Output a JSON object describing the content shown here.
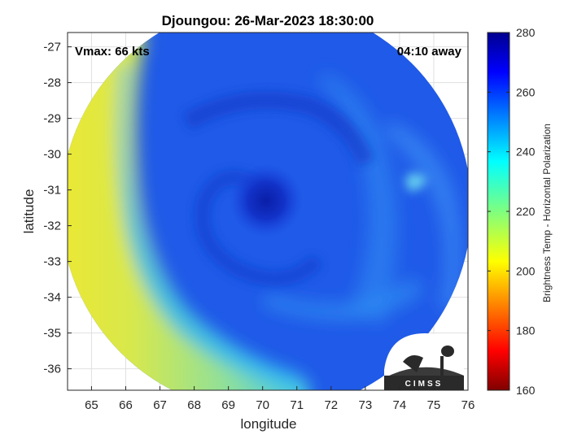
{
  "chart_data": {
    "type": "heatmap",
    "title": "Djoungou: 26-Mar-2023 18:30:00",
    "xlabel": "longitude",
    "ylabel": "latitude",
    "xlim": [
      64.3,
      76
    ],
    "ylim": [
      -36.6,
      -26.6
    ],
    "xticks": [
      "65",
      "66",
      "67",
      "68",
      "69",
      "70",
      "71",
      "72",
      "73",
      "74",
      "75",
      "76"
    ],
    "yticks": [
      "-27",
      "-28",
      "-29",
      "-30",
      "-31",
      "-32",
      "-33",
      "-34",
      "-35",
      "-36"
    ],
    "grid": true,
    "annotations": {
      "left": "Vmax: 66 kts",
      "right": "04:10 away"
    },
    "colorbar": {
      "label": "Brightness Temp - Horizontal Polarization",
      "min": 160,
      "max": 280,
      "ticks": [
        "160",
        "180",
        "200",
        "220",
        "240",
        "260",
        "280"
      ],
      "colormap": "jet"
    },
    "storm_center": {
      "lon": 70.1,
      "lat": -31.3
    },
    "swath_center": {
      "lon": 70.1,
      "lat": -31.5
    },
    "logo": {
      "text": "CIMSS"
    }
  }
}
